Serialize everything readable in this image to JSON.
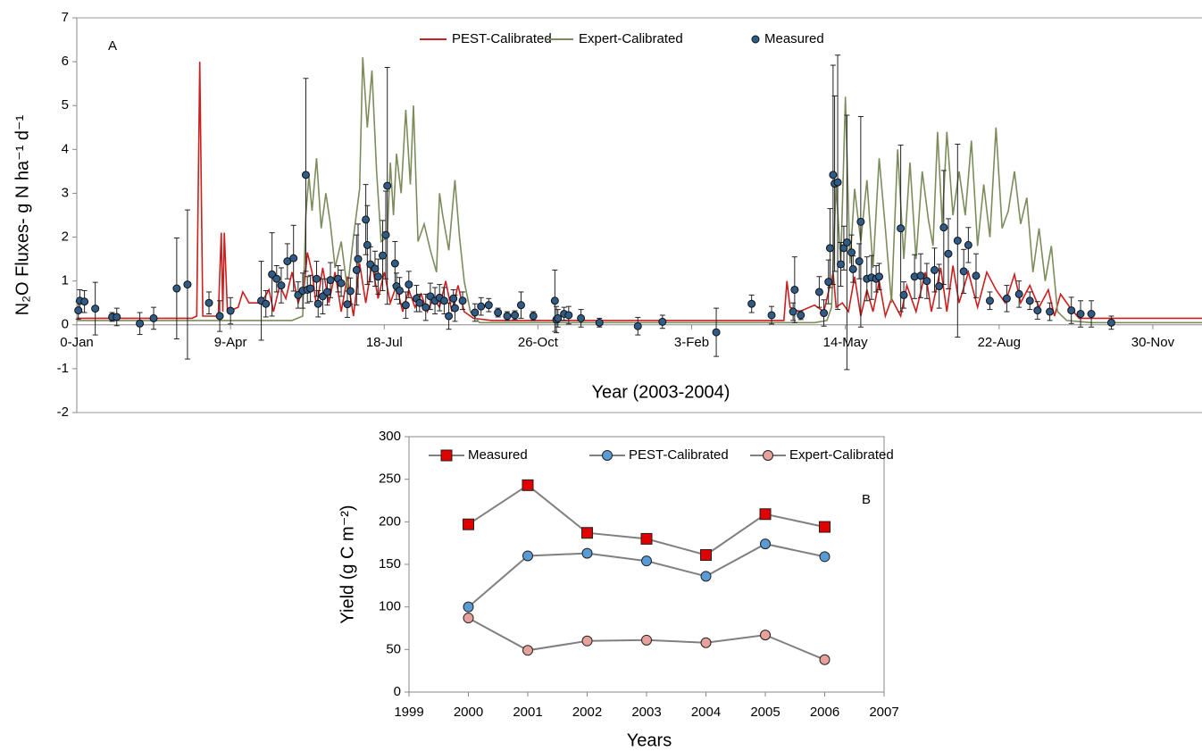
{
  "chart_data": [
    {
      "type": "line",
      "annotation": "A",
      "x_label": "Year (2003-2004)",
      "y_label": "N₂O Fluxes- g N ha⁻¹ d⁻¹",
      "xlim": [
        0,
        732
      ],
      "ylim": [
        -2,
        7
      ],
      "xticks": [
        {
          "value": 0,
          "label": "0-Jan"
        },
        {
          "value": 100,
          "label": "9-Apr"
        },
        {
          "value": 200,
          "label": "18-Jul"
        },
        {
          "value": 300,
          "label": "26-Oct"
        },
        {
          "value": 400,
          "label": "3-Feb"
        },
        {
          "value": 500,
          "label": "14-May"
        },
        {
          "value": 600,
          "label": "22-Aug"
        },
        {
          "value": 700,
          "label": "30-Nov"
        }
      ],
      "yticks": [
        -2,
        -1,
        0,
        1,
        2,
        3,
        4,
        5,
        6,
        7
      ],
      "series": [
        {
          "name": "PEST-Calibrated",
          "color": "#cc1f1f",
          "kind": "line",
          "x": [
            0,
            60,
            75,
            78,
            80,
            82,
            92,
            94,
            95,
            96,
            98,
            105,
            108,
            112,
            120,
            125,
            128,
            132,
            136,
            140,
            144,
            148,
            150,
            153,
            156,
            160,
            164,
            168,
            172,
            176,
            180,
            184,
            188,
            192,
            196,
            200,
            204,
            208,
            212,
            216,
            220,
            224,
            228,
            232,
            236,
            240,
            244,
            248,
            252,
            258,
            270,
            300,
            400,
            460,
            462,
            464,
            470,
            480,
            486,
            490,
            492,
            494,
            498,
            502,
            506,
            510,
            514,
            518,
            522,
            526,
            530,
            536,
            540,
            546,
            552,
            556,
            562,
            566,
            570,
            574,
            580,
            586,
            592,
            598,
            604,
            610,
            614,
            620,
            626,
            632,
            636,
            640,
            646,
            652,
            732
          ],
          "values": [
            0.15,
            0.15,
            0.15,
            0.2,
            6.0,
            0.2,
            0.2,
            2.1,
            0.3,
            2.1,
            0.3,
            0.4,
            0.75,
            0.5,
            0.5,
            0.8,
            0.3,
            0.9,
            0.6,
            1.2,
            0.5,
            0.9,
            1.65,
            1.2,
            0.4,
            1.3,
            0.5,
            1.2,
            0.3,
            1.1,
            0.2,
            1.4,
            0.5,
            1.4,
            0.6,
            1.2,
            0.5,
            0.9,
            0.3,
            0.8,
            0.4,
            0.7,
            0.3,
            0.6,
            0.4,
            1.0,
            0.3,
            0.9,
            0.3,
            0.15,
            0.1,
            0.1,
            0.1,
            0.1,
            1.0,
            0.4,
            0.3,
            0.45,
            0.3,
            0.9,
            1.2,
            0.4,
            0.5,
            0.3,
            1.1,
            0.2,
            0.8,
            0.3,
            1.0,
            0.2,
            0.6,
            0.2,
            0.9,
            0.3,
            1.2,
            0.3,
            1.3,
            0.3,
            1.35,
            0.5,
            1.2,
            0.4,
            1.2,
            0.8,
            0.5,
            1.15,
            0.5,
            0.9,
            0.4,
            0.8,
            0.2,
            0.7,
            0.4,
            0.15,
            0.15
          ]
        },
        {
          "name": "Expert-Calibrated",
          "color": "#7d8c5c",
          "kind": "line",
          "x": [
            0,
            140,
            147,
            149,
            151,
            153,
            156,
            159,
            162,
            165,
            168,
            172,
            176,
            180,
            184,
            186,
            189,
            192,
            195,
            198,
            202,
            204,
            206,
            208,
            211,
            214,
            217,
            219,
            222,
            226,
            230,
            234,
            236,
            238,
            242,
            246,
            249,
            252,
            256,
            262,
            300,
            480,
            488,
            491,
            494,
            497,
            500,
            503,
            506,
            510,
            514,
            518,
            522,
            526,
            530,
            534,
            538,
            542,
            546,
            550,
            554,
            557,
            560,
            563,
            566,
            570,
            574,
            578,
            582,
            586,
            590,
            594,
            598,
            602,
            606,
            610,
            614,
            618,
            622,
            626,
            630,
            634,
            638,
            644,
            660,
            732
          ],
          "values": [
            0.1,
            0.1,
            0.2,
            2.5,
            3.4,
            2.6,
            3.8,
            2.2,
            3.0,
            2.3,
            1.3,
            1.9,
            0.8,
            2.0,
            3.1,
            6.1,
            4.5,
            5.8,
            3.5,
            1.9,
            2.0,
            3.7,
            2.5,
            3.9,
            3.0,
            4.9,
            3.2,
            5.0,
            1.9,
            2.3,
            1.7,
            1.2,
            3.0,
            2.5,
            1.7,
            3.3,
            2.0,
            1.0,
            0.3,
            0.05,
            0.05,
            0.05,
            0.1,
            0.4,
            3.2,
            1.4,
            5.2,
            1.4,
            3.1,
            1.9,
            3.3,
            1.3,
            3.8,
            2.2,
            0.5,
            4.0,
            1.5,
            3.7,
            1.5,
            3.5,
            2.4,
            1.8,
            4.4,
            2.3,
            4.4,
            2.5,
            3.5,
            2.5,
            4.2,
            1.8,
            3.2,
            2.0,
            4.5,
            2.2,
            2.6,
            3.5,
            2.3,
            2.9,
            1.2,
            2.2,
            1.0,
            1.8,
            0.3,
            0.1,
            0.05,
            0.05
          ]
        },
        {
          "name": "Measured",
          "color": "#2f5b86",
          "kind": "points",
          "x": [
            1,
            2,
            5,
            12,
            23,
            26,
            41,
            50,
            65,
            72,
            86,
            93,
            100,
            120,
            123,
            127,
            130,
            133,
            137,
            141,
            144,
            147,
            149,
            150,
            152,
            156,
            157,
            160,
            163,
            165,
            170,
            172,
            176,
            178,
            182,
            183,
            188,
            189,
            191,
            194,
            196,
            199,
            201,
            202,
            207,
            208,
            210,
            214,
            216,
            221,
            223,
            227,
            230,
            233,
            236,
            239,
            242,
            245,
            246,
            251,
            259,
            263,
            268,
            274,
            280,
            285,
            289,
            297,
            311,
            312,
            313,
            317,
            320,
            328,
            340,
            365,
            381,
            416,
            439,
            452,
            466,
            467,
            471,
            483,
            486,
            489,
            490,
            492,
            493,
            495,
            497,
            499,
            501,
            504,
            505,
            509,
            510,
            514,
            517,
            520,
            522,
            536,
            538,
            545,
            549,
            553,
            558,
            561,
            564,
            567,
            573,
            577,
            580,
            585,
            594,
            605,
            613,
            620,
            625,
            633,
            647,
            653,
            660,
            673
          ],
          "values": [
            0.33,
            0.55,
            0.53,
            0.37,
            0.18,
            0.18,
            0.03,
            0.15,
            0.83,
            0.92,
            0.5,
            0.2,
            0.32,
            0.55,
            0.48,
            1.15,
            1.05,
            0.9,
            1.45,
            1.52,
            0.68,
            0.78,
            3.42,
            0.8,
            0.83,
            1.05,
            0.48,
            0.65,
            0.75,
            1.02,
            1.05,
            0.95,
            0.47,
            0.77,
            1.25,
            1.5,
            2.4,
            1.82,
            1.38,
            1.28,
            1.1,
            1.58,
            2.05,
            3.17,
            1.4,
            0.88,
            0.78,
            0.45,
            0.92,
            0.6,
            0.5,
            0.4,
            0.65,
            0.55,
            0.62,
            0.55,
            0.2,
            0.6,
            0.38,
            0.55,
            0.28,
            0.42,
            0.45,
            0.28,
            0.2,
            0.22,
            0.45,
            0.2,
            0.55,
            0.12,
            0.15,
            0.25,
            0.22,
            0.15,
            0.05,
            -0.03,
            0.07,
            -0.17,
            0.48,
            0.22,
            0.3,
            0.8,
            0.22,
            0.75,
            0.27,
            0.98,
            1.75,
            3.42,
            3.22,
            3.25,
            1.38,
            1.75,
            1.88,
            1.65,
            1.27,
            1.45,
            2.35,
            1.05,
            1.08,
            1.05,
            1.1,
            2.2,
            0.68,
            1.1,
            1.12,
            1.0,
            1.25,
            0.88,
            2.22,
            1.62,
            1.92,
            1.22,
            1.82,
            1.12,
            0.55,
            0.6,
            0.7,
            0.55,
            0.33,
            0.3,
            0.33,
            0.25,
            0.25,
            0.05
          ],
          "errors": [
            0.2,
            0.25,
            0.25,
            0.6,
            0.1,
            0.2,
            0.25,
            0.25,
            1.15,
            1.7,
            0.25,
            0.35,
            0.3,
            0.9,
            0.3,
            0.95,
            0.3,
            0.4,
            0.4,
            0.75,
            0.3,
            0.4,
            2.2,
            0.3,
            0.3,
            0.4,
            0.3,
            0.4,
            0.3,
            0.4,
            0.3,
            0.3,
            0.3,
            0.3,
            0.8,
            0.8,
            0.8,
            0.9,
            0.4,
            0.4,
            0.4,
            0.8,
            1.0,
            2.7,
            0.5,
            0.3,
            0.3,
            0.3,
            0.3,
            0.3,
            0.2,
            0.3,
            0.3,
            0.3,
            0.3,
            0.3,
            0.3,
            0.2,
            0.3,
            0.2,
            0.2,
            0.2,
            0.15,
            0.1,
            0.1,
            0.1,
            0.3,
            0.1,
            0.7,
            0.3,
            0.2,
            0.15,
            0.2,
            0.2,
            0.1,
            0.2,
            0.15,
            0.55,
            0.2,
            0.2,
            0.2,
            0.75,
            0.1,
            0.35,
            0.3,
            0.5,
            0.9,
            2.5,
            2.0,
            2.9,
            0.5,
            0.5,
            2.9,
            0.4,
            0.3,
            0.4,
            2.4,
            0.5,
            0.5,
            0.3,
            0.3,
            1.9,
            0.3,
            0.5,
            0.5,
            0.4,
            0.5,
            0.5,
            1.3,
            0.8,
            2.2,
            0.5,
            0.4,
            0.5,
            0.2,
            0.3,
            0.3,
            0.2,
            0.2,
            0.2,
            0.3,
            0.3,
            0.3,
            0.15
          ]
        }
      ]
    },
    {
      "type": "line",
      "annotation": "B",
      "x_label": "Years",
      "y_label": "Yield (g C m⁻²)",
      "xlim": [
        1999,
        2007
      ],
      "ylim": [
        0,
        300
      ],
      "xticks": [
        1999,
        2000,
        2001,
        2002,
        2003,
        2004,
        2005,
        2006,
        2007
      ],
      "yticks": [
        0,
        50,
        100,
        150,
        200,
        250,
        300
      ],
      "line_color": "#808080",
      "x": [
        2000,
        2001,
        2002,
        2003,
        2004,
        2005,
        2006
      ],
      "series": [
        {
          "name": "Measured",
          "color": "#e00000",
          "marker": "square",
          "values": [
            197,
            243,
            187,
            180,
            161,
            209,
            194
          ]
        },
        {
          "name": "PEST-Calibrated",
          "color": "#5b9bd5",
          "marker": "circle",
          "values": [
            100,
            160,
            163,
            154,
            136,
            174,
            159
          ]
        },
        {
          "name": "Expert-Calibrated",
          "color": "#e6a19b",
          "marker": "circle",
          "values": [
            87,
            49,
            60,
            61,
            58,
            67,
            38
          ]
        }
      ]
    }
  ]
}
